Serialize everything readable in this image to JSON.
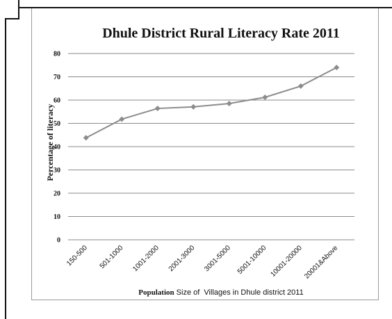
{
  "chart_data": {
    "type": "line",
    "title": "Dhule District Rural  Literacy  Rate 2011",
    "xlabel_bold": "Population",
    "xlabel_rest": " Size of  Villages in Dhule district 2011",
    "ylabel": "Percentage of literacy",
    "categories": [
      "150-500",
      "501-1000",
      "1001-2000",
      "2001-3000",
      "3001-5000",
      "5001-10000",
      "10001-20000",
      "20001&Above"
    ],
    "series": [
      {
        "values": [
          43.8,
          51.8,
          56.4,
          57.1,
          58.5,
          61.2,
          66.0,
          74.0
        ]
      }
    ],
    "ylim": [
      0,
      80
    ],
    "yticks": [
      0,
      10,
      20,
      30,
      40,
      50,
      60,
      70,
      80
    ],
    "grid": true,
    "colors": {
      "line": "#8c8c8c",
      "marker": "#8c8c8c",
      "grid": "#8a8a8a",
      "frame": "#111111"
    }
  }
}
